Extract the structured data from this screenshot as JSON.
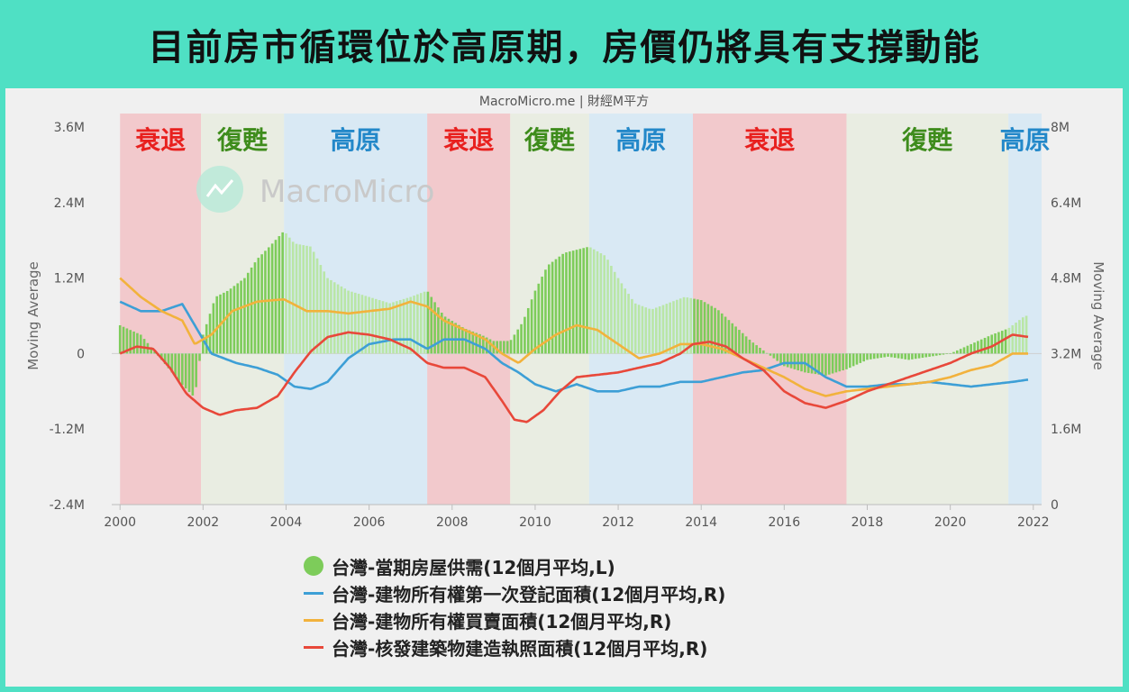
{
  "page": {
    "title": "目前房市循環位於高原期，房價仍將具有支撐動能"
  },
  "chart_data": {
    "type": "bar+line",
    "source": "MacroMicro.me | 財經M平方",
    "watermark": "MacroMicro",
    "y_left": {
      "label": "Moving Average",
      "min": -2.4,
      "max": 3.6,
      "ticks": [
        -2.4,
        -1.2,
        0,
        1.2,
        2.4,
        3.6
      ],
      "tick_labels": [
        "-2.4M",
        "-1.2M",
        "0",
        "1.2M",
        "2.4M",
        "3.6M"
      ]
    },
    "y_right": {
      "label": "Moving Average",
      "min": 0,
      "max": 8,
      "ticks": [
        0,
        1.6,
        3.2,
        4.8,
        6.4,
        8
      ],
      "tick_labels": [
        "0",
        "1.6M",
        "3.2M",
        "4.8M",
        "6.4M",
        "8M"
      ]
    },
    "x_axis": {
      "min": 1999.8,
      "max": 2022.2,
      "ticks": [
        2000,
        2002,
        2004,
        2006,
        2008,
        2010,
        2012,
        2014,
        2016,
        2018,
        2020,
        2022
      ]
    },
    "phases": [
      {
        "label": "衰退",
        "start": 2000.0,
        "end": 2001.95,
        "color": "#f2c9cc",
        "text_color": "#e8201e"
      },
      {
        "label": "復甦",
        "start": 2001.95,
        "end": 2003.95,
        "color": "#e9ede2",
        "text_color": "#3e8c1c"
      },
      {
        "label": "高原",
        "start": 2003.95,
        "end": 2007.4,
        "color": "#d9e9f4",
        "text_color": "#2388c9"
      },
      {
        "label": "衰退",
        "start": 2007.4,
        "end": 2009.4,
        "color": "#f2c9cc",
        "text_color": "#e8201e"
      },
      {
        "label": "復甦",
        "start": 2009.4,
        "end": 2011.3,
        "color": "#e9ede2",
        "text_color": "#3e8c1c"
      },
      {
        "label": "高原",
        "start": 2011.3,
        "end": 2013.8,
        "color": "#d9e9f4",
        "text_color": "#2388c9"
      },
      {
        "label": "衰退",
        "start": 2013.8,
        "end": 2017.5,
        "color": "#f2c9cc",
        "text_color": "#e8201e"
      },
      {
        "label": "復甦",
        "start": 2017.5,
        "end": 2021.4,
        "color": "#e9ede2",
        "text_color": "#3e8c1c"
      },
      {
        "label": "高原",
        "start": 2021.4,
        "end": 2022.2,
        "color": "#d9e9f4",
        "text_color": "#2388c9"
      }
    ],
    "series": [
      {
        "name": "台灣-當期房屋供需(12個月平均,L)",
        "type": "bar",
        "axis": "left",
        "color": "#7dcc5a",
        "x": [
          2000.0,
          2000.5,
          2001.0,
          2001.5,
          2001.8,
          2002.0,
          2002.3,
          2002.6,
          2003.0,
          2003.3,
          2003.6,
          2003.95,
          2004.2,
          2004.6,
          2005.0,
          2005.5,
          2006.0,
          2006.5,
          2007.0,
          2007.4,
          2007.8,
          2008.3,
          2008.7,
          2009.0,
          2009.4,
          2009.7,
          2010.0,
          2010.3,
          2010.7,
          2011.0,
          2011.3,
          2011.7,
          2012.0,
          2012.4,
          2012.8,
          2013.2,
          2013.6,
          2014.0,
          2014.4,
          2014.8,
          2015.2,
          2015.6,
          2016.0,
          2016.5,
          2017.0,
          2017.5,
          2018.0,
          2018.5,
          2019.0,
          2019.5,
          2020.0,
          2020.5,
          2021.0,
          2021.4,
          2021.8
        ],
        "values": [
          0.45,
          0.3,
          -0.1,
          -0.5,
          -0.7,
          0.3,
          0.9,
          1.0,
          1.2,
          1.5,
          1.7,
          1.95,
          1.75,
          1.7,
          1.2,
          1.0,
          0.9,
          0.8,
          0.9,
          1.0,
          0.6,
          0.4,
          0.3,
          0.2,
          0.2,
          0.5,
          1.0,
          1.4,
          1.6,
          1.65,
          1.7,
          1.55,
          1.2,
          0.8,
          0.7,
          0.8,
          0.9,
          0.85,
          0.7,
          0.45,
          0.2,
          0.0,
          -0.2,
          -0.3,
          -0.35,
          -0.25,
          -0.1,
          -0.05,
          -0.1,
          -0.05,
          0.0,
          0.15,
          0.3,
          0.4,
          0.6
        ]
      },
      {
        "name": "台灣-建物所有權第一次登記面積(12個月平均,R)",
        "type": "line",
        "axis": "right",
        "color": "#3d9fd6",
        "faded_color": "#8ecbee",
        "x": [
          2000.0,
          2000.5,
          2001.0,
          2001.5,
          2001.8,
          2002.2,
          2002.8,
          2003.3,
          2003.8,
          2004.2,
          2004.6,
          2005.0,
          2005.5,
          2006.0,
          2006.6,
          2007.0,
          2007.4,
          2007.8,
          2008.3,
          2008.8,
          2009.2,
          2009.6,
          2010.0,
          2010.5,
          2011.0,
          2011.5,
          2012.0,
          2012.5,
          2013.0,
          2013.5,
          2014.0,
          2014.5,
          2015.0,
          2015.5,
          2016.0,
          2016.5,
          2017.0,
          2017.5,
          2018.0,
          2018.5,
          2019.0,
          2019.5,
          2020.0,
          2020.5,
          2021.0,
          2021.5,
          2021.9
        ],
        "values": [
          4.3,
          4.1,
          4.1,
          4.25,
          3.8,
          3.2,
          3.0,
          2.9,
          2.75,
          2.5,
          2.45,
          2.6,
          3.1,
          3.4,
          3.5,
          3.5,
          3.3,
          3.5,
          3.5,
          3.3,
          3.0,
          2.8,
          2.55,
          2.4,
          2.55,
          2.4,
          2.4,
          2.5,
          2.5,
          2.6,
          2.6,
          2.7,
          2.8,
          2.85,
          3.0,
          3.0,
          2.7,
          2.5,
          2.5,
          2.55,
          2.55,
          2.6,
          2.55,
          2.5,
          2.55,
          2.6,
          2.65
        ]
      },
      {
        "name": "台灣-建物所有權買賣面積(12個月平均,R)",
        "type": "line",
        "axis": "right",
        "color": "#f2b23c",
        "faded_color": "#f4d89a",
        "x": [
          2000.0,
          2000.5,
          2001.0,
          2001.5,
          2001.8,
          2002.2,
          2002.7,
          2003.3,
          2003.95,
          2004.5,
          2005.0,
          2005.5,
          2006.0,
          2006.5,
          2007.0,
          2007.4,
          2007.8,
          2008.3,
          2008.8,
          2009.2,
          2009.6,
          2010.0,
          2010.5,
          2011.0,
          2011.5,
          2012.0,
          2012.5,
          2013.0,
          2013.5,
          2014.0,
          2014.5,
          2015.0,
          2015.5,
          2016.0,
          2016.5,
          2017.0,
          2017.5,
          2018.0,
          2018.5,
          2019.0,
          2019.5,
          2020.0,
          2020.5,
          2021.0,
          2021.5,
          2021.9
        ],
        "values": [
          4.8,
          4.4,
          4.1,
          3.9,
          3.4,
          3.6,
          4.1,
          4.3,
          4.35,
          4.1,
          4.1,
          4.05,
          4.1,
          4.15,
          4.3,
          4.2,
          3.9,
          3.7,
          3.5,
          3.2,
          3.0,
          3.3,
          3.6,
          3.8,
          3.7,
          3.4,
          3.1,
          3.2,
          3.4,
          3.4,
          3.3,
          3.1,
          2.9,
          2.7,
          2.45,
          2.3,
          2.4,
          2.45,
          2.5,
          2.55,
          2.6,
          2.7,
          2.85,
          2.95,
          3.2,
          3.2
        ]
      },
      {
        "name": "台灣-核發建築物建造執照面積(12個月平均,R)",
        "type": "line",
        "axis": "right",
        "color": "#e8483a",
        "faded_color": "#eda5a0",
        "x": [
          2000.0,
          2000.4,
          2000.8,
          2001.2,
          2001.6,
          2002.0,
          2002.4,
          2002.8,
          2003.3,
          2003.8,
          2004.2,
          2004.6,
          2005.0,
          2005.5,
          2006.0,
          2006.5,
          2007.0,
          2007.4,
          2007.8,
          2008.3,
          2008.8,
          2009.2,
          2009.5,
          2009.8,
          2010.2,
          2010.6,
          2011.0,
          2011.5,
          2012.0,
          2012.5,
          2013.0,
          2013.5,
          2013.8,
          2014.2,
          2014.6,
          2015.0,
          2015.5,
          2016.0,
          2016.5,
          2017.0,
          2017.5,
          2018.0,
          2018.5,
          2019.0,
          2019.5,
          2020.0,
          2020.5,
          2021.0,
          2021.5,
          2021.9
        ],
        "values": [
          3.2,
          3.35,
          3.3,
          2.9,
          2.35,
          2.05,
          1.9,
          2.0,
          2.05,
          2.3,
          2.8,
          3.25,
          3.55,
          3.65,
          3.6,
          3.5,
          3.3,
          3.0,
          2.9,
          2.9,
          2.7,
          2.2,
          1.8,
          1.75,
          2.0,
          2.4,
          2.7,
          2.75,
          2.8,
          2.9,
          3.0,
          3.2,
          3.4,
          3.45,
          3.35,
          3.1,
          2.85,
          2.4,
          2.15,
          2.05,
          2.2,
          2.4,
          2.55,
          2.7,
          2.85,
          3.0,
          3.2,
          3.35,
          3.6,
          3.55
        ]
      }
    ],
    "legend_position": "bottom"
  }
}
